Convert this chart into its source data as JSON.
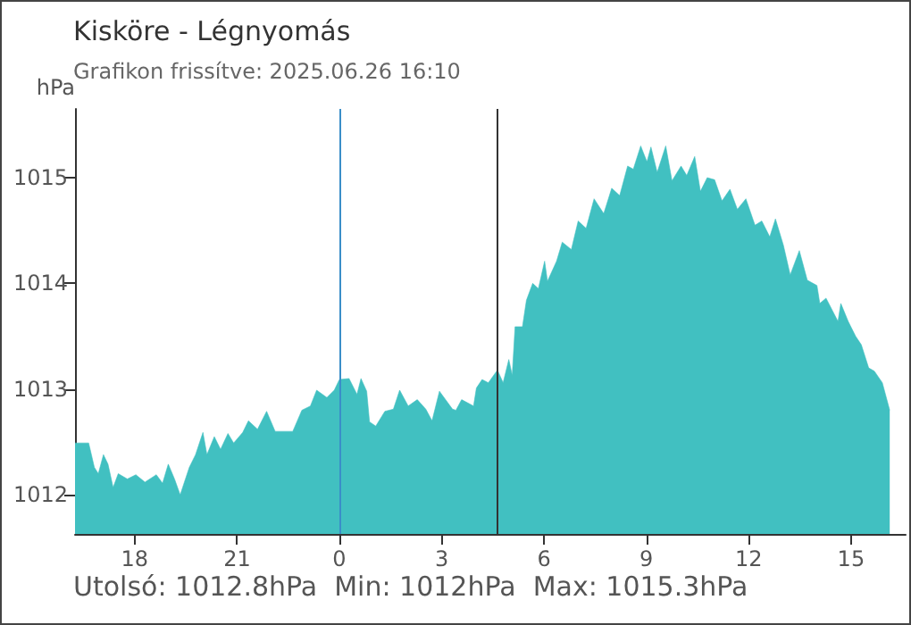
{
  "chart_data": {
    "type": "area",
    "title": "Kisköre - Légnyomás",
    "subtitle": "Grafikon frissítve: 2025.06.26 16:10",
    "ylabel": "hPa",
    "annotations": [
      "Utolsó: 1012.8hPa  Min: 1012hPa  Max: 1015.3hPa"
    ],
    "x": [
      "2025-06-25T16:15",
      "2025-06-25T16:39",
      "2025-06-25T16:49",
      "2025-06-25T16:56",
      "2025-06-25T17:05",
      "2025-06-25T17:13",
      "2025-06-25T17:22",
      "2025-06-25T17:31",
      "2025-06-25T17:47",
      "2025-06-25T18:02",
      "2025-06-25T18:18",
      "2025-06-25T18:38",
      "2025-06-25T18:49",
      "2025-06-25T18:59",
      "2025-06-25T19:10",
      "2025-06-25T19:20",
      "2025-06-25T19:36",
      "2025-06-25T19:47",
      "2025-06-25T20:00",
      "2025-06-25T20:07",
      "2025-06-25T20:20",
      "2025-06-25T20:31",
      "2025-06-25T20:44",
      "2025-06-25T20:54",
      "2025-06-25T21:10",
      "2025-06-25T21:20",
      "2025-06-25T21:36",
      "2025-06-25T21:52",
      "2025-06-25T22:07",
      "2025-06-25T22:38",
      "2025-06-25T22:54",
      "2025-06-25T23:09",
      "2025-06-25T23:20",
      "2025-06-25T23:38",
      "2025-06-25T23:51",
      "2025-06-26T00:00",
      "2025-06-26T00:17",
      "2025-06-26T00:31",
      "2025-06-26T00:38",
      "2025-06-26T00:48",
      "2025-06-26T00:53",
      "2025-06-26T01:04",
      "2025-06-26T01:20",
      "2025-06-26T01:35",
      "2025-06-26T01:46",
      "2025-06-26T02:01",
      "2025-06-26T02:17",
      "2025-06-26T02:32",
      "2025-06-26T02:43",
      "2025-06-26T02:56",
      "2025-06-26T03:19",
      "2025-06-26T03:25",
      "2025-06-26T03:35",
      "2025-06-26T03:56",
      "2025-06-26T04:01",
      "2025-06-26T04:11",
      "2025-06-26T04:22",
      "2025-06-26T04:38",
      "2025-06-26T04:48",
      "2025-06-26T04:58",
      "2025-06-26T05:04",
      "2025-06-26T05:09",
      "2025-06-26T05:22",
      "2025-06-26T05:29",
      "2025-06-26T05:40",
      "2025-06-26T05:50",
      "2025-06-26T06:01",
      "2025-06-26T06:06",
      "2025-06-26T06:22",
      "2025-06-26T06:32",
      "2025-06-26T06:48",
      "2025-06-26T07:00",
      "2025-06-26T07:14",
      "2025-06-26T07:28",
      "2025-06-26T07:45",
      "2025-06-26T07:59",
      "2025-06-26T08:13",
      "2025-06-26T08:27",
      "2025-06-26T08:37",
      "2025-06-26T08:50",
      "2025-06-26T09:01",
      "2025-06-26T09:08",
      "2025-06-26T09:19",
      "2025-06-26T09:34",
      "2025-06-26T09:45",
      "2025-06-26T10:01",
      "2025-06-26T10:11",
      "2025-06-26T10:25",
      "2025-06-26T10:35",
      "2025-06-26T10:47",
      "2025-06-26T11:00",
      "2025-06-26T11:13",
      "2025-06-26T11:27",
      "2025-06-26T11:40",
      "2025-06-26T11:55",
      "2025-06-26T12:11",
      "2025-06-26T12:23",
      "2025-06-26T12:37",
      "2025-06-26T12:47",
      "2025-06-26T13:01",
      "2025-06-26T13:13",
      "2025-06-26T13:29",
      "2025-06-26T13:43",
      "2025-06-26T14:00",
      "2025-06-26T14:05",
      "2025-06-26T14:16",
      "2025-06-26T14:37",
      "2025-06-26T14:42",
      "2025-06-26T14:55",
      "2025-06-26T15:08",
      "2025-06-26T15:18",
      "2025-06-26T15:31",
      "2025-06-26T15:41",
      "2025-06-26T15:55",
      "2025-06-26T16:08"
    ],
    "series": [
      {
        "color": "#41c0c1",
        "values": [
          1012.49,
          1012.49,
          1012.26,
          1012.2,
          1012.38,
          1012.29,
          1012.07,
          1012.2,
          1012.15,
          1012.19,
          1012.12,
          1012.19,
          1012.11,
          1012.29,
          1012.15,
          1012.0,
          1012.26,
          1012.38,
          1012.59,
          1012.38,
          1012.55,
          1012.43,
          1012.58,
          1012.49,
          1012.59,
          1012.7,
          1012.62,
          1012.79,
          1012.6,
          1012.6,
          1012.8,
          1012.84,
          1012.99,
          1012.92,
          1012.99,
          1013.09,
          1013.1,
          1012.95,
          1013.1,
          1012.98,
          1012.69,
          1012.65,
          1012.79,
          1012.81,
          1012.99,
          1012.84,
          1012.9,
          1012.81,
          1012.7,
          1012.98,
          1012.81,
          1012.8,
          1012.9,
          1012.84,
          1013.01,
          1013.09,
          1013.06,
          1013.18,
          1013.06,
          1013.28,
          1013.13,
          1013.59,
          1013.59,
          1013.84,
          1014.0,
          1013.95,
          1014.21,
          1014.02,
          1014.21,
          1014.39,
          1014.32,
          1014.59,
          1014.52,
          1014.8,
          1014.66,
          1014.9,
          1014.83,
          1015.11,
          1015.08,
          1015.3,
          1015.15,
          1015.29,
          1015.05,
          1015.3,
          1014.97,
          1015.11,
          1015.02,
          1015.2,
          1014.87,
          1015.0,
          1014.98,
          1014.78,
          1014.89,
          1014.7,
          1014.8,
          1014.55,
          1014.59,
          1014.44,
          1014.61,
          1014.36,
          1014.08,
          1014.31,
          1014.03,
          1013.98,
          1013.81,
          1013.86,
          1013.64,
          1013.81,
          1013.64,
          1013.5,
          1013.42,
          1013.2,
          1013.17,
          1013.06,
          1012.8
        ]
      }
    ],
    "xlim": [
      "2025-06-25T16:15",
      "2025-06-26T16:36"
    ],
    "ylim": [
      1011.63,
      1015.65
    ],
    "xticks": [
      {
        "value": "2025-06-25T18:00",
        "label": "18"
      },
      {
        "value": "2025-06-25T21:00",
        "label": "21"
      },
      {
        "value": "2025-06-26T00:00",
        "label": "0"
      },
      {
        "value": "2025-06-26T03:00",
        "label": "3"
      },
      {
        "value": "2025-06-26T06:00",
        "label": "6"
      },
      {
        "value": "2025-06-26T09:00",
        "label": "9"
      },
      {
        "value": "2025-06-26T12:00",
        "label": "12"
      },
      {
        "value": "2025-06-26T15:00",
        "label": "15"
      }
    ],
    "yticks": [
      1012,
      1013,
      1014,
      1015
    ],
    "ref_lines": [
      {
        "axis": "x",
        "value": "2025-06-26T00:00",
        "color": "#3a8ec8"
      },
      {
        "axis": "x",
        "value": "2025-06-26T04:38",
        "color": "#333333"
      }
    ],
    "grid": false
  }
}
